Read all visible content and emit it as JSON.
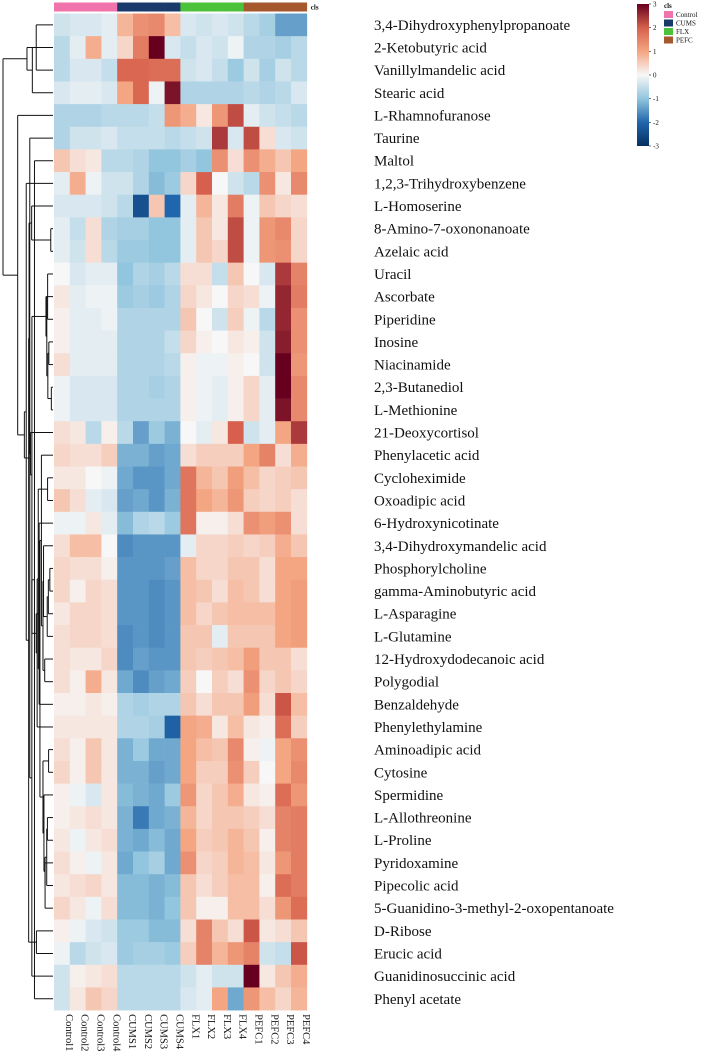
{
  "chart_data": {
    "type": "heatmap",
    "annotation_title": "cls",
    "legend_title": "cls",
    "columns": [
      "Control1",
      "Control2",
      "Control3",
      "Control4",
      "CUMS1",
      "CUMS2",
      "CUMS3",
      "CUMS4",
      "FLX1",
      "FLX2",
      "FLX3",
      "FLX4",
      "PEFC1",
      "PEFC2",
      "PEFC3",
      "PEFC4"
    ],
    "column_groups": [
      "Control",
      "Control",
      "Control",
      "Control",
      "CUMS",
      "CUMS",
      "CUMS",
      "CUMS",
      "FLX",
      "FLX",
      "FLX",
      "FLX",
      "PEFC",
      "PEFC",
      "PEFC",
      "PEFC"
    ],
    "groups": [
      {
        "name": "Control",
        "color": "#f173ac"
      },
      {
        "name": "CUMS",
        "color": "#1a3a6b"
      },
      {
        "name": "FLX",
        "color": "#4cc23a"
      },
      {
        "name": "PEFC",
        "color": "#a5582e"
      }
    ],
    "color_scale": {
      "range": [
        -3,
        3
      ],
      "ticks": [
        3,
        2,
        1,
        0,
        -1,
        -2,
        -3
      ],
      "stops": [
        {
          "v": -3,
          "c": "#053061"
        },
        {
          "v": -2,
          "c": "#2166ac"
        },
        {
          "v": -1,
          "c": "#92c5de"
        },
        {
          "v": 0,
          "c": "#f7f7f7"
        },
        {
          "v": 1,
          "c": "#f4a582"
        },
        {
          "v": 2,
          "c": "#d6604d"
        },
        {
          "v": 3,
          "c": "#67001f"
        }
      ]
    },
    "rows": [
      {
        "name": "3,4-Dihydroxyphenylpropanoate",
        "values": [
          -0.4,
          -0.3,
          -0.3,
          -0.2,
          0.8,
          1.3,
          1.4,
          0.7,
          -0.3,
          -0.4,
          -0.3,
          -0.4,
          -0.6,
          -0.8,
          -1.4,
          -1.4
        ]
      },
      {
        "name": "2-Ketobutyric acid",
        "values": [
          -0.6,
          -0.2,
          0.9,
          -0.2,
          0.4,
          1.6,
          3.0,
          -0.3,
          -0.5,
          -0.3,
          -0.4,
          -0.1,
          -0.7,
          -0.7,
          -0.8,
          -0.6
        ]
      },
      {
        "name": "Vanillylmandelic acid",
        "values": [
          -0.6,
          -0.3,
          -0.3,
          -0.5,
          1.9,
          1.9,
          1.8,
          1.8,
          -0.4,
          -0.3,
          -0.5,
          -0.9,
          -0.4,
          -0.8,
          -0.4,
          -0.6
        ]
      },
      {
        "name": "Stearic acid",
        "values": [
          -0.3,
          -0.2,
          -0.2,
          -0.3,
          1.0,
          1.9,
          -0.1,
          2.8,
          -0.7,
          -0.7,
          -0.7,
          -0.7,
          -0.6,
          -0.7,
          -0.6,
          -0.3
        ]
      },
      {
        "name": "L-Rhamnofuranose",
        "values": [
          -0.7,
          -0.7,
          -0.7,
          -0.6,
          -0.6,
          -0.6,
          -0.5,
          1.2,
          0.9,
          0.2,
          1.2,
          2.2,
          -0.2,
          -0.4,
          -0.5,
          -0.6
        ]
      },
      {
        "name": "Taurine",
        "values": [
          -0.7,
          -0.4,
          -0.4,
          -0.3,
          -0.5,
          -0.5,
          -0.5,
          -0.6,
          -0.5,
          -0.4,
          2.4,
          -0.3,
          2.2,
          0.3,
          -0.3,
          -0.4
        ]
      },
      {
        "name": "Maltol",
        "values": [
          0.6,
          0.3,
          0.2,
          -0.6,
          -0.6,
          -0.7,
          -1.0,
          -1.0,
          -0.8,
          -1.0,
          1.3,
          0.3,
          1.3,
          0.9,
          0.6,
          1.0
        ]
      },
      {
        "name": "1,2,3-Trihydroxybenzene",
        "values": [
          -0.2,
          0.9,
          -0.1,
          -0.4,
          -0.4,
          -0.7,
          -1.1,
          -0.9,
          0.4,
          2.0,
          0.0,
          -0.4,
          -0.6,
          1.3,
          0.2,
          1.4
        ]
      },
      {
        "name": "L-Homoserine",
        "values": [
          -0.3,
          -0.3,
          -0.3,
          -0.4,
          -0.6,
          -2.4,
          0.6,
          -2.0,
          -0.2,
          0.8,
          0.2,
          1.6,
          -0.1,
          0.6,
          0.4,
          0.3
        ]
      },
      {
        "name": "8-Amino-7-oxononanoate",
        "values": [
          -0.2,
          -0.5,
          0.3,
          -0.7,
          -0.8,
          -0.8,
          -1.0,
          -1.0,
          -0.2,
          0.6,
          0.2,
          2.2,
          -0.1,
          1.2,
          1.4,
          0.4
        ]
      },
      {
        "name": "Azelaic acid",
        "values": [
          -0.2,
          -0.4,
          0.3,
          -0.6,
          -0.9,
          -0.9,
          -1.0,
          -1.0,
          -0.2,
          0.6,
          0.4,
          2.2,
          -0.1,
          1.2,
          1.3,
          0.4
        ]
      },
      {
        "name": "Uracil",
        "values": [
          0.0,
          -0.3,
          -0.2,
          -0.2,
          -1.0,
          -0.7,
          -0.8,
          -0.6,
          0.3,
          0.3,
          -0.5,
          0.6,
          0.0,
          -0.3,
          2.4,
          1.5
        ]
      },
      {
        "name": "Ascorbate",
        "values": [
          0.2,
          -0.2,
          -0.1,
          -0.1,
          -0.9,
          -0.8,
          -0.9,
          -0.7,
          0.4,
          0.2,
          0.0,
          0.4,
          0.3,
          -0.1,
          2.6,
          1.6
        ]
      },
      {
        "name": "Piperidine",
        "values": [
          0.1,
          -0.2,
          -0.2,
          -0.1,
          -0.7,
          -0.7,
          -0.7,
          -0.7,
          0.6,
          0.0,
          -0.4,
          0.5,
          -0.1,
          -0.6,
          2.6,
          1.3
        ]
      },
      {
        "name": "Inosine",
        "values": [
          0.1,
          -0.2,
          -0.2,
          -0.2,
          -0.7,
          -0.7,
          -0.7,
          -0.5,
          0.4,
          0.1,
          0.0,
          0.2,
          0.1,
          -0.4,
          2.7,
          1.3
        ]
      },
      {
        "name": "Niacinamide",
        "values": [
          0.3,
          -0.2,
          -0.2,
          -0.2,
          -0.7,
          -0.7,
          -0.7,
          -0.6,
          0.1,
          -0.1,
          -0.1,
          0.1,
          0.0,
          -0.4,
          3.0,
          1.2
        ]
      },
      {
        "name": "2,3-Butanediol",
        "values": [
          -0.1,
          -0.3,
          -0.3,
          -0.3,
          -0.7,
          -0.7,
          -0.8,
          -0.7,
          0.1,
          -0.1,
          -0.2,
          0.1,
          0.4,
          -0.2,
          3.0,
          1.4
        ]
      },
      {
        "name": "L-Methionine",
        "values": [
          -0.1,
          -0.3,
          -0.3,
          -0.3,
          -0.7,
          -0.7,
          -0.7,
          -0.7,
          0.1,
          -0.1,
          -0.2,
          0.1,
          0.4,
          -0.2,
          2.8,
          1.4
        ]
      },
      {
        "name": "21-Deoxycortisol",
        "values": [
          0.3,
          0.2,
          -0.6,
          0.1,
          -0.6,
          -1.4,
          -0.9,
          -1.2,
          0.0,
          -0.2,
          0.2,
          2.0,
          -0.4,
          -0.2,
          1.0,
          2.4
        ]
      },
      {
        "name": "Phenylacetic acid",
        "values": [
          0.4,
          0.3,
          0.3,
          0.5,
          -1.2,
          -1.2,
          -1.4,
          -1.3,
          0.3,
          0.5,
          0.5,
          0.5,
          1.0,
          1.5,
          0.3,
          0.9
        ]
      },
      {
        "name": "Cycloheximide",
        "values": [
          0.2,
          0.2,
          0.0,
          -0.1,
          -1.3,
          -1.5,
          -1.5,
          -1.3,
          1.7,
          0.8,
          0.6,
          1.1,
          0.7,
          0.4,
          0.5,
          0.6
        ]
      },
      {
        "name": "Oxoadipic acid",
        "values": [
          0.6,
          0.3,
          -0.2,
          -0.3,
          -1.4,
          -1.3,
          -1.5,
          -1.2,
          1.7,
          1.0,
          0.8,
          1.2,
          0.5,
          0.4,
          0.5,
          0.3
        ]
      },
      {
        "name": "6-Hydroxynicotinate",
        "values": [
          -0.1,
          -0.1,
          0.2,
          -0.2,
          -1.1,
          -0.7,
          -0.6,
          -0.9,
          1.7,
          0.1,
          0.1,
          0.3,
          1.3,
          1.1,
          1.3,
          0.3
        ]
      },
      {
        "name": "3,4-Dihydroxymandelic acid",
        "values": [
          0.3,
          0.7,
          0.7,
          0.0,
          -1.6,
          -1.5,
          -1.5,
          -1.5,
          -0.2,
          0.4,
          0.4,
          0.5,
          0.4,
          0.5,
          0.9,
          0.6
        ]
      },
      {
        "name": "Phosphorylcholine",
        "values": [
          0.4,
          0.3,
          0.3,
          0.1,
          -1.5,
          -1.5,
          -1.5,
          -1.4,
          0.7,
          0.4,
          0.4,
          0.6,
          0.6,
          0.3,
          1.0,
          1.0
        ]
      },
      {
        "name": "gamma-Aminobutyric acid",
        "values": [
          0.4,
          0.1,
          0.4,
          0.3,
          -1.5,
          -1.5,
          -1.6,
          -1.5,
          0.7,
          0.6,
          0.3,
          0.7,
          0.6,
          0.3,
          1.0,
          1.1
        ]
      },
      {
        "name": "L-Asparagine",
        "values": [
          0.2,
          0.4,
          0.4,
          0.3,
          -1.5,
          -1.5,
          -1.6,
          -1.5,
          0.7,
          0.4,
          0.6,
          0.7,
          0.7,
          0.7,
          1.0,
          1.1
        ]
      },
      {
        "name": "L-Glutamine",
        "values": [
          0.3,
          0.4,
          0.4,
          0.3,
          -1.6,
          -1.5,
          -1.6,
          -1.5,
          0.6,
          0.6,
          -0.2,
          0.6,
          0.6,
          0.6,
          1.0,
          1.1
        ]
      },
      {
        "name": "12-Hydroxydodecanoic acid",
        "values": [
          0.3,
          0.2,
          0.2,
          0.4,
          -1.6,
          -1.4,
          -1.5,
          -1.5,
          0.6,
          0.5,
          0.6,
          0.7,
          1.1,
          0.6,
          0.6,
          0.3
        ]
      },
      {
        "name": "Polygodial",
        "values": [
          0.3,
          0.1,
          0.9,
          0.2,
          -1.3,
          -1.6,
          -1.4,
          -1.3,
          0.5,
          0.0,
          0.5,
          0.3,
          1.3,
          0.4,
          0.6,
          0.4
        ]
      },
      {
        "name": "Benzaldehyde",
        "values": [
          0.1,
          0.1,
          0.2,
          0.1,
          -0.7,
          -0.8,
          -0.7,
          -0.7,
          0.6,
          0.3,
          0.6,
          0.6,
          1.1,
          0.3,
          2.1,
          0.7
        ]
      },
      {
        "name": "Phenylethylamine",
        "values": [
          0.2,
          0.2,
          0.2,
          0.2,
          -0.7,
          -0.7,
          -0.8,
          -2.1,
          1.0,
          0.9,
          0.2,
          0.7,
          0.2,
          0.1,
          1.8,
          0.5
        ]
      },
      {
        "name": "Aminoadipic acid",
        "values": [
          0.3,
          0.1,
          0.6,
          0.2,
          -1.2,
          -0.9,
          -1.3,
          -1.3,
          1.0,
          0.7,
          0.6,
          1.4,
          0.1,
          -0.1,
          1.0,
          1.3
        ]
      },
      {
        "name": "Cytosine",
        "values": [
          0.4,
          0.1,
          0.6,
          0.2,
          -1.2,
          -1.2,
          -1.4,
          -1.3,
          1.0,
          0.5,
          0.5,
          1.3,
          0.5,
          0.0,
          1.0,
          1.4
        ]
      },
      {
        "name": "Spermidine",
        "values": [
          0.1,
          -0.1,
          -0.3,
          0.2,
          -1.1,
          -1.2,
          -1.3,
          -0.9,
          1.2,
          0.4,
          0.6,
          0.9,
          0.2,
          0.1,
          1.8,
          1.2
        ]
      },
      {
        "name": "L-Allothreonine",
        "values": [
          0.1,
          0.2,
          0.3,
          0.2,
          -1.2,
          -1.8,
          -1.3,
          -1.2,
          0.8,
          0.4,
          0.6,
          0.6,
          0.5,
          0.3,
          1.5,
          1.6
        ]
      },
      {
        "name": "L-Proline",
        "values": [
          0.2,
          -0.1,
          0.2,
          0.3,
          -1.2,
          -1.3,
          -1.1,
          -1.3,
          1.0,
          0.5,
          0.6,
          0.8,
          0.6,
          0.1,
          1.5,
          1.6
        ]
      },
      {
        "name": "Pyridoxamine",
        "values": [
          0.3,
          0.1,
          -0.1,
          0.2,
          -1.3,
          -1.0,
          -0.8,
          -1.3,
          1.3,
          0.4,
          0.5,
          0.8,
          0.7,
          0.2,
          1.2,
          1.6
        ]
      },
      {
        "name": "Pipecolic acid",
        "values": [
          0.2,
          0.3,
          0.4,
          0.2,
          -1.1,
          -1.1,
          -1.2,
          -1.1,
          0.6,
          0.3,
          0.5,
          0.7,
          0.7,
          0.1,
          1.8,
          1.6
        ]
      },
      {
        "name": "5-Guanidino-3-methyl-2-oxopentanoate",
        "values": [
          0.4,
          0.2,
          -0.1,
          0.3,
          -1.1,
          -1.1,
          -1.2,
          -1.0,
          0.6,
          0.1,
          0.1,
          0.7,
          0.7,
          0.3,
          1.2,
          1.8
        ]
      },
      {
        "name": "D-Ribose",
        "values": [
          0.1,
          -0.1,
          -0.3,
          -0.4,
          -0.9,
          -0.9,
          -1.1,
          -1.1,
          0.3,
          1.5,
          0.6,
          0.3,
          2.1,
          0.2,
          0.3,
          0.6
        ]
      },
      {
        "name": "Erucic acid",
        "values": [
          -0.1,
          -0.6,
          -0.4,
          -0.3,
          -0.9,
          -0.8,
          -0.8,
          -0.9,
          0.5,
          1.5,
          0.8,
          1.2,
          1.5,
          -0.4,
          -0.5,
          2.1
        ]
      },
      {
        "name": "Guanidinosuccinic acid",
        "values": [
          -0.4,
          0.1,
          0.2,
          0.3,
          -0.6,
          -0.6,
          -0.6,
          -0.6,
          -0.4,
          -0.2,
          -0.4,
          -0.4,
          3.0,
          0.2,
          0.6,
          0.9
        ]
      },
      {
        "name": "Phenyl acetate",
        "values": [
          -0.4,
          0.2,
          0.6,
          0.4,
          -0.6,
          -0.6,
          -0.6,
          -0.6,
          -0.3,
          -0.2,
          1.0,
          -1.3,
          1.2,
          0.7,
          0.4,
          0.8
        ]
      }
    ]
  }
}
